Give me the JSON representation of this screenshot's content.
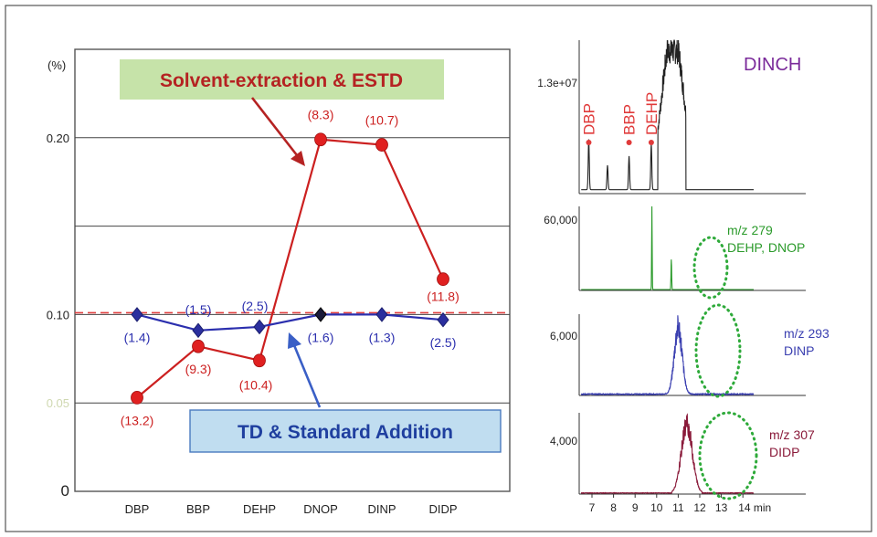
{
  "chart_data": [
    {
      "type": "line",
      "title": "",
      "y_unit": "(%)",
      "categories": [
        "DBP",
        "BBP",
        "DEHP",
        "DNOP",
        "DINP",
        "DIDP"
      ],
      "ylim": [
        0,
        0.25
      ],
      "yticks": [
        {
          "value": 0,
          "label": "0"
        },
        {
          "value": 0.05,
          "label": "0.05"
        },
        {
          "value": 0.1,
          "label": "0.10"
        },
        {
          "value": 0.2,
          "label": "0.20"
        }
      ],
      "gridlines": [
        0.05,
        0.1,
        0.15,
        0.2
      ],
      "reference_line": 0.101,
      "series": [
        {
          "name": "Solvent-extraction & ESTD",
          "color": "#cc2020",
          "marker": "circle",
          "values": [
            0.053,
            0.082,
            0.074,
            0.199,
            0.196,
            0.12
          ],
          "labels": [
            "(13.2)",
            "(9.3)",
            "(10.4)",
            "(8.3)",
            "(10.7)",
            "(11.8)"
          ]
        },
        {
          "name": "TD & Standard Addition",
          "color": "#2b2f9e",
          "marker": "diamond",
          "values": [
            0.1,
            0.091,
            0.093,
            0.1,
            0.1,
            0.097
          ],
          "labels": [
            "(1.4)",
            "(1.5)",
            "(2.5)",
            "(1.6)",
            "(1.3)",
            "(2.5)"
          ]
        }
      ]
    },
    {
      "type": "line",
      "title": "DINCH",
      "ytick_label": "1.3e+07",
      "peak_labels": [
        "DBP",
        "BBP",
        "DEHP"
      ],
      "color": "#222222"
    },
    {
      "type": "line",
      "title": "m/z 279",
      "subtitle": "DEHP, DNOP",
      "ytick_label": "60,000",
      "color": "#2a9a2a"
    },
    {
      "type": "line",
      "title": "m/z 293",
      "subtitle": "DINP",
      "ytick_label": "6,000",
      "color": "#3a3fb0"
    },
    {
      "type": "line",
      "title": "m/z 307",
      "subtitle": "DIDP",
      "ytick_label": "4,000",
      "color": "#8a1a3a"
    },
    {
      "type": "axis",
      "xtick_labels": [
        "7",
        "8",
        "9",
        "10",
        "11",
        "12",
        "13",
        "14 min"
      ]
    }
  ]
}
